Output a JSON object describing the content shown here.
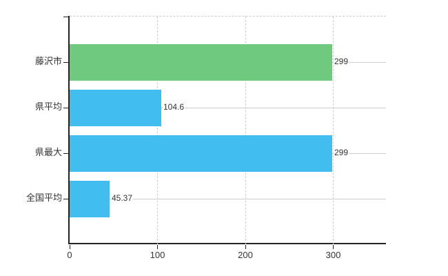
{
  "chart_data": {
    "type": "bar",
    "orientation": "horizontal",
    "title": "",
    "xlabel": "",
    "ylabel": "",
    "categories": [
      "藤沢市",
      "県平均",
      "県最大",
      "全国平均"
    ],
    "values": [
      299,
      104.6,
      299,
      45.37
    ],
    "value_labels": [
      "299",
      "104.6",
      "299",
      "45.37"
    ],
    "bar_colors": [
      "#6fc97e",
      "#41bdef",
      "#41bdef",
      "#41bdef"
    ],
    "x_ticks": [
      0,
      100,
      200,
      300
    ],
    "x_tick_labels": [
      "0",
      "100",
      "200",
      "300"
    ],
    "xlim": [
      0,
      360
    ],
    "grid": true,
    "grid_vertical_style": "dashed",
    "grid_row_style": "solid",
    "legend": false
  },
  "colors": {
    "bar_green": "#6fc97e",
    "bar_blue": "#41bdef",
    "grid": "#cccccc",
    "axis": "#222222",
    "text": "#333333",
    "background": "#ffffff"
  }
}
